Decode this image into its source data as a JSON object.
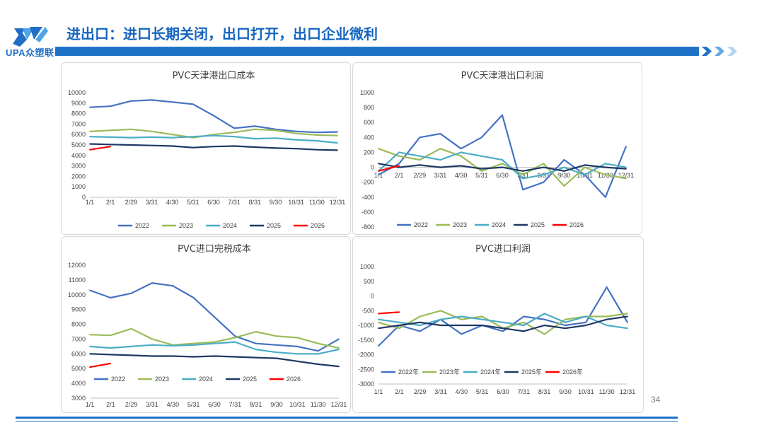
{
  "header": {
    "title": "进出口：进口长期关闭，出口打开，出口企业微利",
    "logo_text": "UPA众塑联",
    "accent": "#1e73c8"
  },
  "page_number": "34",
  "chart_data": [
    {
      "id": "c1",
      "type": "line",
      "title": "PVC天津港出口成本",
      "categories": [
        "1/1",
        "2/1",
        "2/29",
        "3/31",
        "4/30",
        "5/31",
        "6/30",
        "7/31",
        "8/31",
        "9/30",
        "10/31",
        "11/30",
        "12/31"
      ],
      "ylim": [
        0,
        10000
      ],
      "yticks": [
        0,
        1000,
        2000,
        3000,
        4000,
        5000,
        6000,
        7000,
        8000,
        9000,
        10000
      ],
      "series": [
        {
          "name": "2022",
          "color": "#4472c4",
          "values": [
            8600,
            8700,
            9200,
            9300,
            9100,
            8900,
            7800,
            6600,
            6800,
            6500,
            6300,
            6200,
            6250
          ]
        },
        {
          "name": "2023",
          "color": "#9bbb59",
          "values": [
            6300,
            6400,
            6500,
            6300,
            6000,
            5700,
            6000,
            6200,
            6500,
            6400,
            6100,
            5950,
            5900
          ]
        },
        {
          "name": "2024",
          "color": "#4bacc6",
          "values": [
            5800,
            5750,
            5700,
            5750,
            5700,
            5800,
            5900,
            5800,
            5600,
            5650,
            5500,
            5400,
            5200
          ]
        },
        {
          "name": "2025",
          "color": "#1f3864",
          "values": [
            5100,
            5050,
            5000,
            4950,
            4900,
            4750,
            4850,
            4900,
            4800,
            4700,
            4650,
            4550,
            4500
          ]
        },
        {
          "name": "2026",
          "color": "#ff0000",
          "values": [
            4550,
            4850,
            null,
            null,
            null,
            null,
            null,
            null,
            null,
            null,
            null,
            null,
            null
          ]
        }
      ]
    },
    {
      "id": "c2",
      "type": "line",
      "title": "PVC天津港出口利润",
      "categories": [
        "1/1",
        "2/1",
        "2/29",
        "3/31",
        "4/30",
        "5/31",
        "6/30",
        "7/31",
        "8/31",
        "9/30",
        "10/31",
        "11/30",
        "12/31"
      ],
      "ylim": [
        -800,
        1000
      ],
      "yticks": [
        -800,
        -600,
        -400,
        -200,
        0,
        200,
        400,
        600,
        800,
        1000
      ],
      "series": [
        {
          "name": "2022",
          "color": "#4472c4",
          "values": [
            -100,
            50,
            400,
            450,
            250,
            400,
            700,
            -300,
            -200,
            100,
            -100,
            -400,
            280
          ]
        },
        {
          "name": "2023",
          "color": "#9bbb59",
          "values": [
            250,
            150,
            100,
            250,
            150,
            -50,
            50,
            -100,
            50,
            -250,
            0,
            -100,
            -150
          ]
        },
        {
          "name": "2024",
          "color": "#4bacc6",
          "values": [
            -50,
            200,
            150,
            100,
            200,
            150,
            100,
            -150,
            -100,
            0,
            -100,
            50,
            0
          ]
        },
        {
          "name": "2025",
          "color": "#1f3864",
          "values": [
            50,
            0,
            30,
            0,
            20,
            -20,
            0,
            -50,
            0,
            -50,
            30,
            0,
            -20
          ]
        },
        {
          "name": "2026",
          "color": "#ff0000",
          "values": [
            -50,
            20,
            null,
            null,
            null,
            null,
            null,
            null,
            null,
            null,
            null,
            null,
            null
          ]
        }
      ]
    },
    {
      "id": "c3",
      "type": "line",
      "title": "PVC进口完税成本",
      "categories": [
        "1/1",
        "2/1",
        "2/29",
        "3/31",
        "4/30",
        "5/31",
        "6/30",
        "7/31",
        "8/31",
        "9/30",
        "10/31",
        "11/30",
        "12/31"
      ],
      "ylim": [
        3000,
        12000
      ],
      "yticks": [
        3000,
        4000,
        5000,
        6000,
        7000,
        8000,
        9000,
        10000,
        11000,
        12000
      ],
      "series": [
        {
          "name": "2022",
          "color": "#4472c4",
          "values": [
            10300,
            9800,
            10100,
            10800,
            10600,
            9800,
            8500,
            7200,
            6700,
            6600,
            6500,
            6200,
            7000
          ]
        },
        {
          "name": "2023",
          "color": "#9bbb59",
          "values": [
            7300,
            7250,
            7700,
            7000,
            6600,
            6700,
            6800,
            7100,
            7500,
            7200,
            7100,
            6700,
            6400
          ]
        },
        {
          "name": "2024",
          "color": "#4bacc6",
          "values": [
            6500,
            6400,
            6500,
            6600,
            6550,
            6600,
            6700,
            6800,
            6300,
            6100,
            6000,
            6000,
            6300
          ]
        },
        {
          "name": "2025",
          "color": "#1f3864",
          "values": [
            6000,
            5950,
            5900,
            5850,
            5850,
            5800,
            5850,
            5800,
            5750,
            5700,
            5500,
            5300,
            5150
          ]
        },
        {
          "name": "2026",
          "color": "#ff0000",
          "values": [
            5100,
            5350,
            null,
            null,
            null,
            null,
            null,
            null,
            null,
            null,
            null,
            null,
            null
          ]
        }
      ]
    },
    {
      "id": "c4",
      "type": "line",
      "title": "PVC进口利润",
      "categories": [
        "1/1",
        "2/1",
        "2/29",
        "3/31",
        "4/30",
        "5/31",
        "6/30",
        "7/31",
        "8/31",
        "9/30",
        "10/31",
        "11/30",
        "12/31"
      ],
      "ylim": [
        -3000,
        1000
      ],
      "yticks": [
        -3000,
        -2500,
        -2000,
        -1500,
        -1000,
        -500,
        0,
        500,
        1000
      ],
      "series": [
        {
          "name": "2022年",
          "color": "#4472c4",
          "values": [
            -1700,
            -1000,
            -1200,
            -800,
            -1300,
            -1000,
            -1200,
            -700,
            -800,
            -1000,
            -900,
            300,
            -900
          ]
        },
        {
          "name": "2023年",
          "color": "#9bbb59",
          "values": [
            -900,
            -1100,
            -700,
            -500,
            -800,
            -700,
            -1100,
            -900,
            -1300,
            -800,
            -700,
            -700,
            -600
          ]
        },
        {
          "name": "2024年",
          "color": "#4bacc6",
          "values": [
            -800,
            -900,
            -1000,
            -800,
            -700,
            -800,
            -900,
            -1000,
            -600,
            -900,
            -700,
            -1000,
            -1100
          ]
        },
        {
          "name": "2025年",
          "color": "#1f3864",
          "values": [
            -1100,
            -1000,
            -900,
            -1000,
            -1000,
            -1000,
            -1100,
            -1200,
            -1000,
            -1100,
            -1000,
            -800,
            -700
          ]
        },
        {
          "name": "2026年",
          "color": "#ff0000",
          "values": [
            -600,
            -550,
            null,
            null,
            null,
            null,
            null,
            null,
            null,
            null,
            null,
            null,
            null
          ]
        }
      ]
    }
  ]
}
